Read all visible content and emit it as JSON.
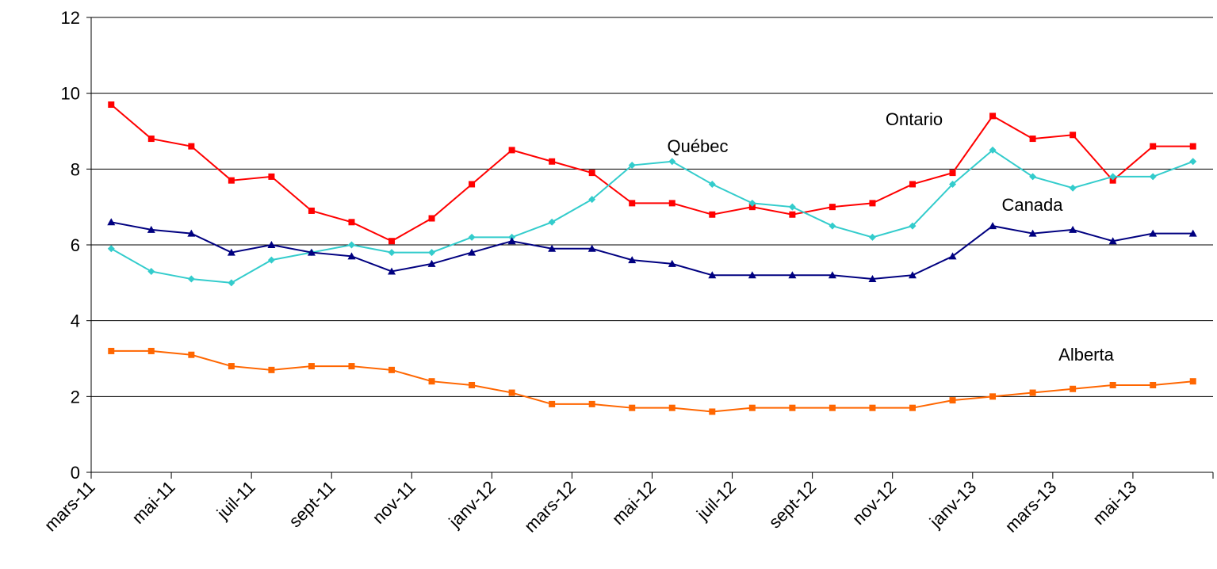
{
  "chart_data": {
    "type": "line",
    "categories": [
      "mars-11",
      null,
      "mai-11",
      null,
      "juil-11",
      null,
      "sept-11",
      null,
      "nov-11",
      null,
      "janv-12",
      null,
      "mars-12",
      null,
      "mai-12",
      null,
      "juil-12",
      null,
      "sept-12",
      null,
      "nov-12",
      null,
      "janv-13",
      null,
      "mars-13",
      null,
      "mai-13",
      null
    ],
    "series": [
      {
        "name": "Ontario",
        "color": "#ff0000",
        "marker": "square",
        "values": [
          9.7,
          8.8,
          8.6,
          7.7,
          7.8,
          6.9,
          6.6,
          6.1,
          6.7,
          7.6,
          8.5,
          8.2,
          7.9,
          7.1,
          7.1,
          6.8,
          7.0,
          6.8,
          7.0,
          7.1,
          7.6,
          7.9,
          9.4,
          8.8,
          8.9,
          7.7,
          8.6,
          8.6
        ]
      },
      {
        "name": "Québec",
        "color": "#33cccc",
        "marker": "diamond",
        "values": [
          5.9,
          5.3,
          5.1,
          5.0,
          5.6,
          5.8,
          6.0,
          5.8,
          5.8,
          6.2,
          6.2,
          6.6,
          7.2,
          8.1,
          8.2,
          7.6,
          7.1,
          7.0,
          6.5,
          6.2,
          6.5,
          7.6,
          8.5,
          7.8,
          7.5,
          7.8,
          7.8,
          8.2
        ]
      },
      {
        "name": "Canada",
        "color": "#000080",
        "marker": "triangle",
        "values": [
          6.6,
          6.4,
          6.3,
          5.8,
          6.0,
          5.8,
          5.7,
          5.3,
          5.5,
          5.8,
          6.1,
          5.9,
          5.9,
          5.6,
          5.5,
          5.2,
          5.2,
          5.2,
          5.2,
          5.1,
          5.2,
          5.7,
          6.5,
          6.3,
          6.4,
          6.1,
          6.3,
          6.3
        ]
      },
      {
        "name": "Alberta",
        "color": "#ff6600",
        "marker": "square",
        "values": [
          3.2,
          3.2,
          3.1,
          2.8,
          2.7,
          2.8,
          2.8,
          2.7,
          2.4,
          2.3,
          2.1,
          1.8,
          1.8,
          1.7,
          1.7,
          1.6,
          1.7,
          1.7,
          1.7,
          1.7,
          1.7,
          1.9,
          2.0,
          2.1,
          2.2,
          2.3,
          2.3,
          2.4
        ]
      }
    ],
    "ylim": [
      0,
      12
    ],
    "yticks": [
      0,
      2,
      4,
      6,
      8,
      10,
      12
    ],
    "grid": true
  }
}
